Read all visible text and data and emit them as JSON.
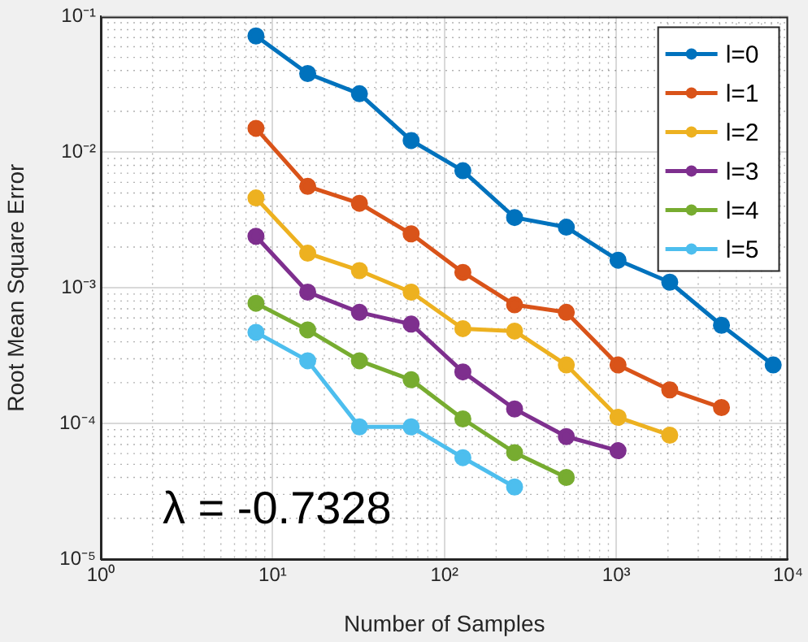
{
  "chart_data": {
    "type": "line",
    "xlabel": "Number of Samples",
    "ylabel": "Root Mean Square Error",
    "log": "xy",
    "grid": true,
    "legend": "top right",
    "marker": "circle",
    "line_style": "solid",
    "xlim": [
      1,
      10000
    ],
    "xticks": [
      {
        "value": 1,
        "label": "10⁰"
      },
      {
        "value": 10,
        "label": "10¹"
      },
      {
        "value": 100,
        "label": "10²"
      },
      {
        "value": 1000,
        "label": "10³"
      },
      {
        "value": 10000,
        "label": "10⁴"
      }
    ],
    "ylim": [
      1e-05,
      0.1
    ],
    "yticks": [
      {
        "value": 1e-05,
        "label": "10⁻⁵"
      },
      {
        "value": 0.0001,
        "label": "10⁻⁴"
      },
      {
        "value": 0.001,
        "label": "10⁻³"
      },
      {
        "value": 0.01,
        "label": "10⁻²"
      },
      {
        "value": 0.1,
        "label": "10⁻¹"
      }
    ],
    "annotations": [
      "λ = -0.7328"
    ],
    "series": [
      {
        "name": "l=0",
        "color": "#0072bd",
        "x": [
          8,
          16,
          32,
          64,
          128,
          256,
          512,
          1024,
          2048,
          4096,
          8192
        ],
        "values": [
          0.072,
          0.038,
          0.027,
          0.0122,
          0.0073,
          0.0033,
          0.0028,
          0.0016,
          0.0011,
          0.00053,
          0.00027
        ]
      },
      {
        "name": "l=1",
        "color": "#d95319",
        "x": [
          8,
          16,
          32,
          64,
          128,
          256,
          512,
          1024,
          2048,
          4096
        ],
        "values": [
          0.015,
          0.0056,
          0.0042,
          0.0025,
          0.0013,
          0.00075,
          0.00066,
          0.00027,
          0.000177,
          0.000131
        ]
      },
      {
        "name": "l=2",
        "color": "#edb120",
        "x": [
          8,
          16,
          32,
          64,
          128,
          256,
          512,
          1024,
          2048
        ],
        "values": [
          0.0046,
          0.0018,
          0.00134,
          0.00093,
          0.0005,
          0.00048,
          0.00027,
          0.000111,
          8.2e-05
        ]
      },
      {
        "name": "l=3",
        "color": "#7e2f8e",
        "x": [
          8,
          16,
          32,
          64,
          128,
          256,
          512,
          1024
        ],
        "values": [
          0.0024,
          0.00093,
          0.00066,
          0.00054,
          0.00024,
          0.000128,
          8e-05,
          6.3e-05
        ]
      },
      {
        "name": "l=4",
        "color": "#77ac30",
        "x": [
          8,
          16,
          32,
          64,
          128,
          256,
          512
        ],
        "values": [
          0.00077,
          0.00049,
          0.00029,
          0.00021,
          0.000108,
          6.1e-05,
          4e-05
        ]
      },
      {
        "name": "l=5",
        "color": "#4dbeee",
        "x": [
          8,
          16,
          32,
          64,
          128,
          256
        ],
        "values": [
          0.00047,
          0.00029,
          9.44e-05,
          9.44e-05,
          5.6e-05,
          3.4e-05
        ]
      }
    ]
  }
}
